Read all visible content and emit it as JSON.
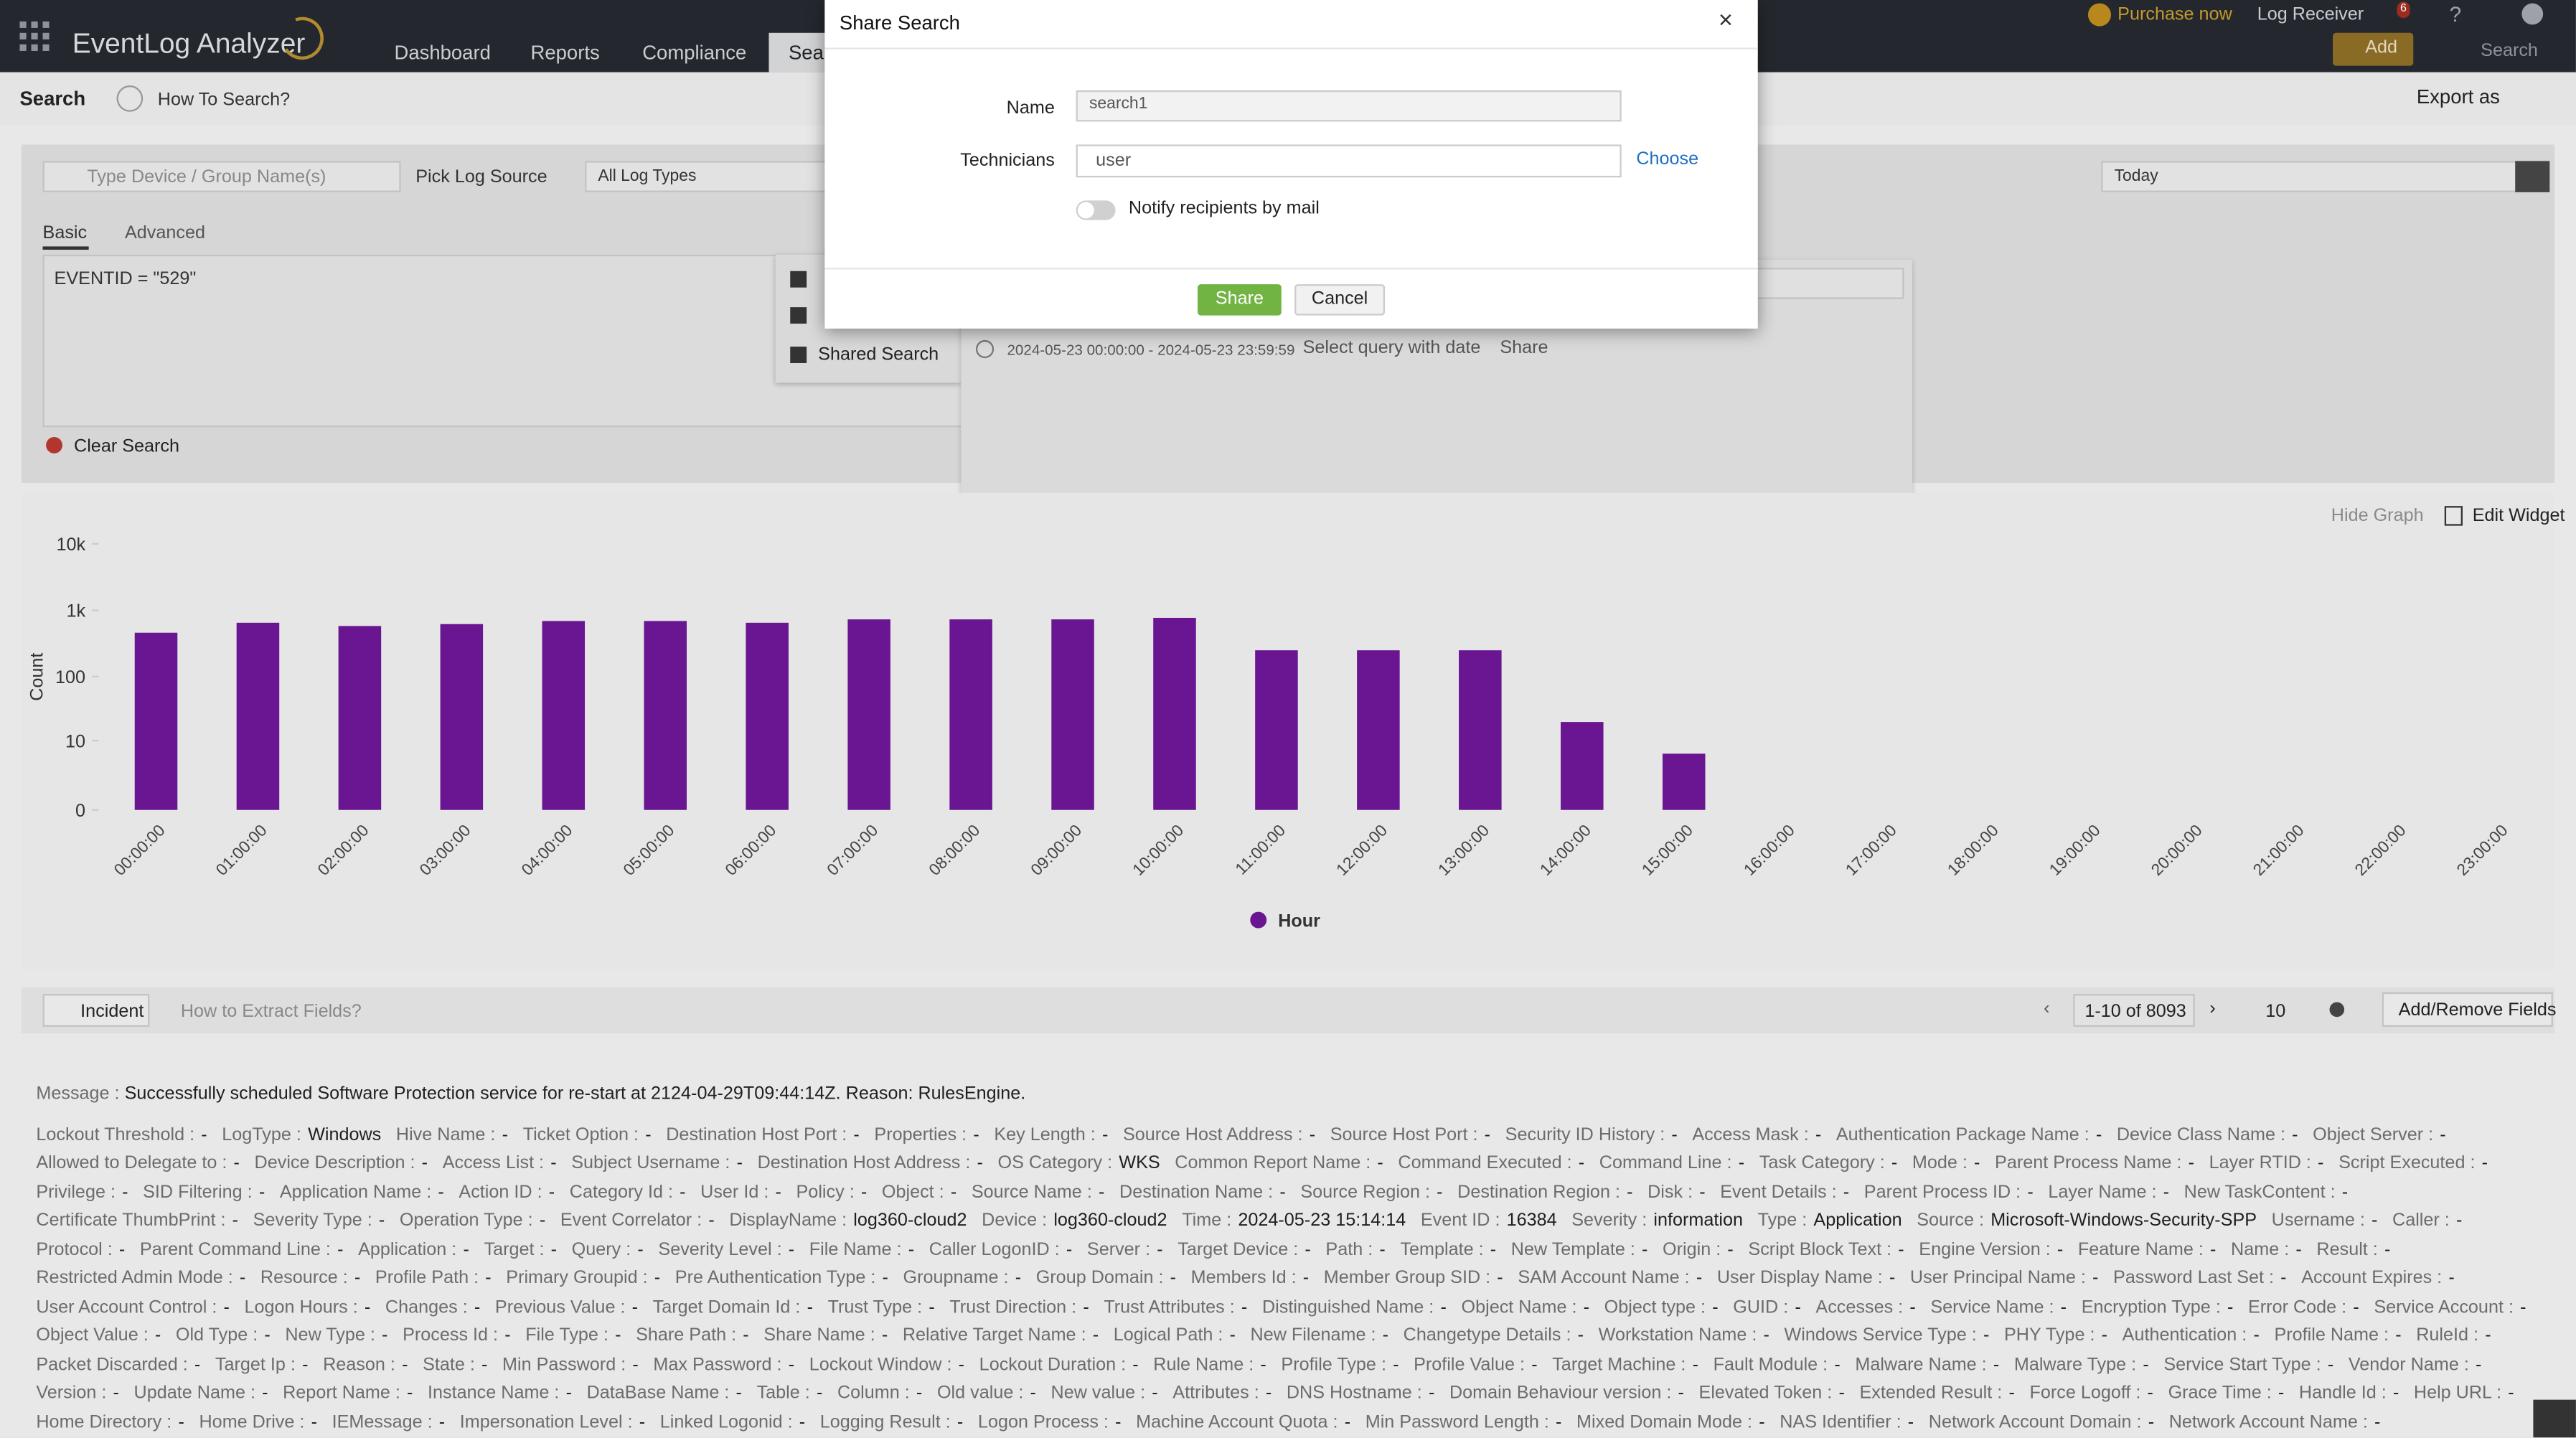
{
  "header": {
    "app_name": "EventLog Analyzer",
    "nav": [
      "Dashboard",
      "Reports",
      "Compliance",
      "Sear"
    ],
    "purchase": "Purchase now",
    "log_receiver": "Log Receiver",
    "notifications": "6",
    "help": "?",
    "add": "Add",
    "search": "Search"
  },
  "toolbar": {
    "title": "Search",
    "how_to": "How To Search?",
    "export": "Export as"
  },
  "search_panel": {
    "device_placeholder": "Type Device / Group Name(s)",
    "log_source_label": "Pick Log Source",
    "log_source": "All Log Types",
    "period": "Today",
    "tabs": [
      "Basic",
      "Advanced"
    ],
    "query": "EVENTID = \"529\"",
    "clear": "Clear Search"
  },
  "menu": {
    "items": [
      "Shared Search"
    ]
  },
  "saved_search": {
    "range": "2024-05-23 00:00:00 - 2024-05-23 23:59:59",
    "select": "Select query with date",
    "share": "Share"
  },
  "dialog": {
    "title": "Share Search",
    "close": "×",
    "name_label": "Name",
    "name_value": "search1",
    "technicians_label": "Technicians",
    "technicians_value": "user",
    "choose": "Choose",
    "notify": "Notify recipients by mail",
    "share": "Share",
    "cancel": "Cancel"
  },
  "graph_actions": {
    "hide": "Hide Graph",
    "edit": "Edit Widget"
  },
  "chart_data": {
    "type": "bar",
    "y_label": "Count",
    "yscale": "symlog",
    "categories": [
      "00:00:00",
      "01:00:00",
      "02:00:00",
      "03:00:00",
      "04:00:00",
      "05:00:00",
      "06:00:00",
      "07:00:00",
      "08:00:00",
      "09:00:00",
      "10:00:00",
      "11:00:00",
      "12:00:00",
      "13:00:00",
      "14:00:00",
      "15:00:00",
      "16:00:00",
      "17:00:00",
      "18:00:00",
      "19:00:00",
      "20:00:00",
      "21:00:00",
      "22:00:00",
      "23:00:00"
    ],
    "series": [
      {
        "name": "Hour",
        "color": "#6a1592",
        "values": [
          460,
          650,
          580,
          620,
          690,
          690,
          650,
          730,
          730,
          730,
          770,
          250,
          250,
          250,
          20,
          6,
          0,
          0,
          0,
          0,
          0,
          0,
          0,
          0
        ]
      }
    ],
    "ylim": [
      0,
      10000
    ],
    "yticks": [
      0,
      10,
      100,
      {
        "value": 1000,
        "label": "1k"
      },
      {
        "value": 10000,
        "label": "10k"
      }
    ],
    "legend": "bottom"
  },
  "results": {
    "tab": "Incident",
    "extract": "How to Extract Fields?",
    "range": "1-10 of 8093",
    "page_size": "10",
    "add_remove": "Add/Remove Fields",
    "message_label": "Message :",
    "message": "Successfully scheduled Software Protection service for re-start at 2124-04-29T09:44:14Z. Reason: RulesEngine.",
    "rows": [
      [
        [
          "Lockout Threshold :",
          "-"
        ],
        [
          "LogType :",
          "Windows"
        ],
        [
          "Hive Name :",
          "-"
        ],
        [
          "Ticket Option :",
          "-"
        ],
        [
          "Destination Host Port :",
          "-"
        ],
        [
          "Properties :",
          "-"
        ],
        [
          "Key Length :",
          "-"
        ],
        [
          "Source Host Address :",
          "-"
        ],
        [
          "Source Host Port :",
          "-"
        ],
        [
          "Security ID History :",
          "-"
        ],
        [
          "Access Mask :",
          "-"
        ],
        [
          "Authentication Package Name :",
          "-"
        ],
        [
          "Device Class Name :",
          "-"
        ],
        [
          "Object Server :",
          "-"
        ]
      ],
      [
        [
          "Allowed to Delegate to :",
          "-"
        ],
        [
          "Device Description :",
          "-"
        ],
        [
          "Access List :",
          "-"
        ],
        [
          "Subject Username :",
          "-"
        ],
        [
          "Destination Host Address :",
          "-"
        ],
        [
          "OS Category :",
          "WKS"
        ],
        [
          "Common Report Name :",
          "-"
        ],
        [
          "Command Executed :",
          "-"
        ],
        [
          "Command Line :",
          "-"
        ],
        [
          "Task Category :",
          "-"
        ],
        [
          "Mode :",
          "-"
        ],
        [
          "Parent Process Name :",
          "-"
        ],
        [
          "Layer RTID :",
          "-"
        ],
        [
          "Script Executed :",
          "-"
        ]
      ],
      [
        [
          "Privilege :",
          "-"
        ],
        [
          "SID Filtering :",
          "-"
        ],
        [
          "Application Name :",
          "-"
        ],
        [
          "Action ID :",
          "-"
        ],
        [
          "Category Id :",
          "-"
        ],
        [
          "User Id :",
          "-"
        ],
        [
          "Policy :",
          "-"
        ],
        [
          "Object :",
          "-"
        ],
        [
          "Source Name :",
          "-"
        ],
        [
          "Destination Name :",
          "-"
        ],
        [
          "Source Region :",
          "-"
        ],
        [
          "Destination Region :",
          "-"
        ],
        [
          "Disk :",
          "-"
        ],
        [
          "Event Details :",
          "-"
        ],
        [
          "Parent Process ID :",
          "-"
        ],
        [
          "Layer Name :",
          "-"
        ],
        [
          "New TaskContent :",
          "-"
        ]
      ],
      [
        [
          "Certificate ThumbPrint :",
          "-"
        ],
        [
          "Severity Type :",
          "-"
        ],
        [
          "Operation Type :",
          "-"
        ],
        [
          "Event Correlator :",
          "-"
        ],
        [
          "DisplayName :",
          "log360-cloud2"
        ],
        [
          "Device :",
          "log360-cloud2"
        ],
        [
          "Time :",
          "2024-05-23 15:14:14"
        ],
        [
          "Event ID :",
          "16384"
        ],
        [
          "Severity :",
          "information"
        ],
        [
          "Type :",
          "Application"
        ],
        [
          "Source :",
          "Microsoft-Windows-Security-SPP"
        ],
        [
          "Username :",
          "-"
        ],
        [
          "Caller :",
          "-"
        ]
      ],
      [
        [
          "Protocol :",
          "-"
        ],
        [
          "Parent Command Line :",
          "-"
        ],
        [
          "Application :",
          "-"
        ],
        [
          "Target :",
          "-"
        ],
        [
          "Query :",
          "-"
        ],
        [
          "Severity Level :",
          "-"
        ],
        [
          "File Name :",
          "-"
        ],
        [
          "Caller LogonID :",
          "-"
        ],
        [
          "Server :",
          "-"
        ],
        [
          "Target Device :",
          "-"
        ],
        [
          "Path :",
          "-"
        ],
        [
          "Template :",
          "-"
        ],
        [
          "New Template :",
          "-"
        ],
        [
          "Origin :",
          "-"
        ],
        [
          "Script Block Text :",
          "-"
        ],
        [
          "Engine Version :",
          "-"
        ],
        [
          "Feature Name :",
          "-"
        ],
        [
          "Name :",
          "-"
        ],
        [
          "Result :",
          "-"
        ]
      ],
      [
        [
          "Restricted Admin Mode :",
          "-"
        ],
        [
          "Resource :",
          "-"
        ],
        [
          "Profile Path :",
          "-"
        ],
        [
          "Primary Groupid :",
          "-"
        ],
        [
          "Pre Authentication Type :",
          "-"
        ],
        [
          "Groupname :",
          "-"
        ],
        [
          "Group Domain :",
          "-"
        ],
        [
          "Members Id :",
          "-"
        ],
        [
          "Member Group SID :",
          "-"
        ],
        [
          "SAM Account Name :",
          "-"
        ],
        [
          "User Display Name :",
          "-"
        ],
        [
          "User Principal Name :",
          "-"
        ],
        [
          "Password Last Set :",
          "-"
        ],
        [
          "Account Expires :",
          "-"
        ]
      ],
      [
        [
          "User Account Control :",
          "-"
        ],
        [
          "Logon Hours :",
          "-"
        ],
        [
          "Changes :",
          "-"
        ],
        [
          "Previous Value :",
          "-"
        ],
        [
          "Target Domain Id :",
          "-"
        ],
        [
          "Trust Type :",
          "-"
        ],
        [
          "Trust Direction :",
          "-"
        ],
        [
          "Trust Attributes :",
          "-"
        ],
        [
          "Distinguished Name :",
          "-"
        ],
        [
          "Object Name :",
          "-"
        ],
        [
          "Object type :",
          "-"
        ],
        [
          "GUID :",
          "-"
        ],
        [
          "Accesses :",
          "-"
        ],
        [
          "Service Name :",
          "-"
        ],
        [
          "Encryption Type :",
          "-"
        ],
        [
          "Error Code :",
          "-"
        ],
        [
          "Service Account :",
          "-"
        ]
      ],
      [
        [
          "Object Value :",
          "-"
        ],
        [
          "Old Type :",
          "-"
        ],
        [
          "New Type :",
          "-"
        ],
        [
          "Process Id :",
          "-"
        ],
        [
          "File Type :",
          "-"
        ],
        [
          "Share Path :",
          "-"
        ],
        [
          "Share Name :",
          "-"
        ],
        [
          "Relative Target Name :",
          "-"
        ],
        [
          "Logical Path :",
          "-"
        ],
        [
          "New Filename :",
          "-"
        ],
        [
          "Changetype Details :",
          "-"
        ],
        [
          "Workstation Name :",
          "-"
        ],
        [
          "Windows Service Type :",
          "-"
        ],
        [
          "PHY Type :",
          "-"
        ],
        [
          "Authentication :",
          "-"
        ],
        [
          "Profile Name :",
          "-"
        ],
        [
          "RuleId :",
          "-"
        ]
      ],
      [
        [
          "Packet Discarded :",
          "-"
        ],
        [
          "Target Ip :",
          "-"
        ],
        [
          "Reason :",
          "-"
        ],
        [
          "State :",
          "-"
        ],
        [
          "Min Password :",
          "-"
        ],
        [
          "Max Password :",
          "-"
        ],
        [
          "Lockout Window :",
          "-"
        ],
        [
          "Lockout Duration :",
          "-"
        ],
        [
          "Rule Name :",
          "-"
        ],
        [
          "Profile Type :",
          "-"
        ],
        [
          "Profile Value :",
          "-"
        ],
        [
          "Target Machine :",
          "-"
        ],
        [
          "Fault Module :",
          "-"
        ],
        [
          "Malware Name :",
          "-"
        ],
        [
          "Malware Type :",
          "-"
        ],
        [
          "Service Start Type :",
          "-"
        ],
        [
          "Vendor Name :",
          "-"
        ]
      ],
      [
        [
          "Version :",
          "-"
        ],
        [
          "Update Name :",
          "-"
        ],
        [
          "Report Name :",
          "-"
        ],
        [
          "Instance Name :",
          "-"
        ],
        [
          "DataBase Name :",
          "-"
        ],
        [
          "Table :",
          "-"
        ],
        [
          "Column :",
          "-"
        ],
        [
          "Old value :",
          "-"
        ],
        [
          "New value :",
          "-"
        ],
        [
          "Attributes :",
          "-"
        ],
        [
          "DNS Hostname :",
          "-"
        ],
        [
          "Domain Behaviour version :",
          "-"
        ],
        [
          "Elevated Token :",
          "-"
        ],
        [
          "Extended Result :",
          "-"
        ],
        [
          "Force Logoff :",
          "-"
        ],
        [
          "Grace Time :",
          "-"
        ],
        [
          "Handle Id :",
          "-"
        ],
        [
          "Help URL :",
          "-"
        ]
      ],
      [
        [
          "Home Directory :",
          "-"
        ],
        [
          "Home Drive :",
          "-"
        ],
        [
          "IEMessage :",
          "-"
        ],
        [
          "Impersonation Level :",
          "-"
        ],
        [
          "Linked Logonid :",
          "-"
        ],
        [
          "Logging Result :",
          "-"
        ],
        [
          "Logon Process :",
          "-"
        ],
        [
          "Machine Account Quota :",
          "-"
        ],
        [
          "Min Password Length :",
          "-"
        ],
        [
          "Mixed Domain Mode :",
          "-"
        ],
        [
          "NAS Identifier :",
          "-"
        ],
        [
          "Network Account Domain :",
          "-"
        ],
        [
          "Network Account Name :",
          "-"
        ]
      ]
    ]
  }
}
